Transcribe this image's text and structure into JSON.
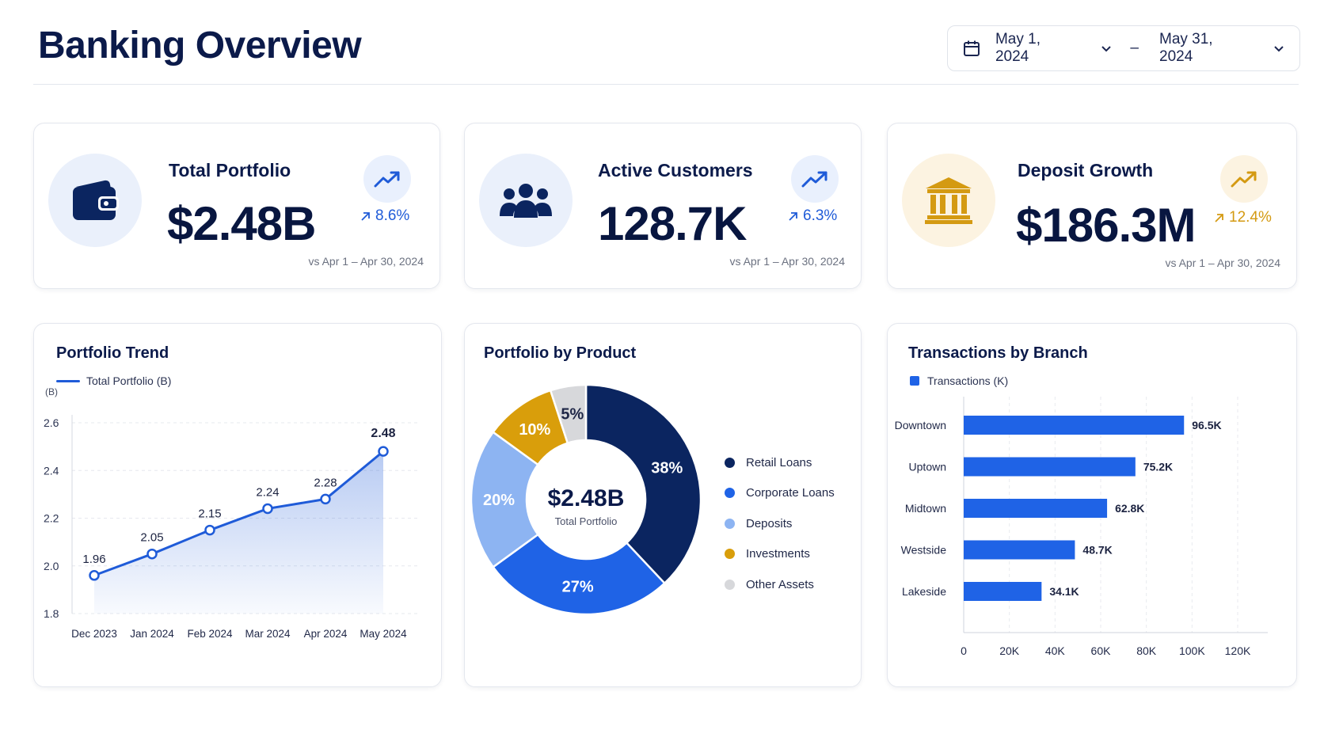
{
  "header": {
    "title": "Banking Overview",
    "date_start": "May 1, 2024",
    "date_end": "May 31, 2024",
    "dash": "–"
  },
  "kpis": [
    {
      "label": "Total Portfolio",
      "value": "$2.48B",
      "change": "8.6%",
      "compare": "vs Apr 1 – Apr 30, 2024",
      "icon": "wallet-icon",
      "color": "#1f5bd8"
    },
    {
      "label": "Active Customers",
      "value": "128.7K",
      "change": "6.3%",
      "compare": "vs Apr 1 – Apr 30, 2024",
      "icon": "users-icon",
      "color": "#1f5bd8"
    },
    {
      "label": "Deposit Growth",
      "value": "$186.3M",
      "change": "12.4%",
      "compare": "vs Apr 1 – Apr 30, 2024",
      "icon": "bank-icon",
      "color": "#d49a12"
    }
  ],
  "trend": {
    "title": "Portfolio Trend",
    "legend": "Total Portfolio (B)",
    "unit": "(B)",
    "chart_data": {
      "type": "area",
      "x": [
        "Dec 2023",
        "Jan 2024",
        "Feb 2024",
        "Mar 2024",
        "Apr 2024",
        "May 2024"
      ],
      "series": [
        {
          "name": "Total Portfolio (B)",
          "values": [
            1.96,
            2.05,
            2.15,
            2.24,
            2.28,
            2.48
          ]
        }
      ],
      "yticks": [
        "1.8",
        "2.0",
        "2.2",
        "2.4",
        "2.6"
      ],
      "ylim": [
        1.8,
        2.6
      ],
      "labels": [
        "1.96",
        "2.05",
        "2.15",
        "2.24",
        "2.28",
        "2.48"
      ],
      "color": "#1f5bd8"
    }
  },
  "product": {
    "title": "Portfolio by Product",
    "center_value": "$2.48B",
    "center_label": "Total Portfolio",
    "chart_data": {
      "type": "pie",
      "categories": [
        "Retail Loans",
        "Corporate Loans",
        "Deposits",
        "Investments",
        "Other Assets"
      ],
      "values": [
        38,
        27,
        20,
        10,
        5
      ],
      "labels": [
        "38%",
        "27%",
        "20%",
        "10%",
        "5%"
      ],
      "colors": [
        "#0b2560",
        "#1f63e6",
        "#8db4f2",
        "#d99e0b",
        "#d7d8db"
      ]
    }
  },
  "branch": {
    "title": "Transactions by Branch",
    "legend": "Transactions (K)",
    "chart_data": {
      "type": "bar",
      "categories": [
        "Downtown",
        "Uptown",
        "Midtown",
        "Westside",
        "Lakeside"
      ],
      "values": [
        96.5,
        75.2,
        62.8,
        48.7,
        34.1
      ],
      "labels": [
        "96.5K",
        "75.2K",
        "62.8K",
        "48.7K",
        "34.1K"
      ],
      "xticks": [
        "0",
        "20K",
        "40K",
        "60K",
        "80K",
        "100K",
        "120K"
      ],
      "xlim": [
        0,
        120
      ],
      "color": "#1f63e6"
    }
  }
}
